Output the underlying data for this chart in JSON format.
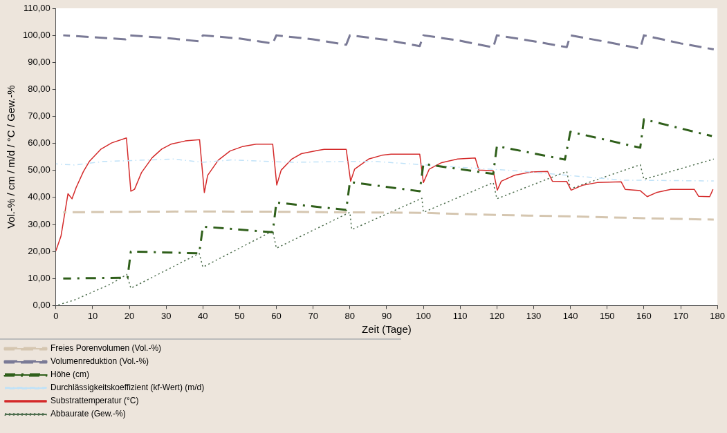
{
  "chart_data": {
    "type": "line",
    "xlabel": "Zeit (Tage)",
    "ylabel": "Vol.-% / cm / m/d / °C / Gew.-%",
    "xlim": [
      0,
      180
    ],
    "xticks": [
      0,
      10,
      20,
      30,
      40,
      50,
      60,
      70,
      80,
      90,
      100,
      110,
      120,
      130,
      140,
      150,
      160,
      170,
      180
    ],
    "ylim": [
      0,
      110
    ],
    "yticks": [
      {
        "value": 0,
        "label": "0,00"
      },
      {
        "value": 10,
        "label": "10,00"
      },
      {
        "value": 20,
        "label": "20,00"
      },
      {
        "value": 30,
        "label": "30,00"
      },
      {
        "value": 40,
        "label": "40,00"
      },
      {
        "value": 50,
        "label": "50,00"
      },
      {
        "value": 60,
        "label": "60,00"
      },
      {
        "value": 70,
        "label": "70,00"
      },
      {
        "value": 80,
        "label": "80,00"
      },
      {
        "value": 90,
        "label": "90,00"
      },
      {
        "value": 100,
        "label": "100,00"
      },
      {
        "value": 110,
        "label": "110,00"
      }
    ],
    "grid": false,
    "legend": "bottom left",
    "marker": "none",
    "series": [
      {
        "name": "Freies Porenvolumen (Vol.-%)",
        "color": "#d5c6b0",
        "line_style": "dashed",
        "x": [
          2,
          20,
          40,
          60,
          80,
          100,
          120,
          140,
          160,
          179
        ],
        "values": [
          34.5,
          34.7,
          34.8,
          34.7,
          34.5,
          34.3,
          33.5,
          33,
          32.3,
          31.8
        ]
      },
      {
        "name": "Volumenreduktion (Vol.-%)",
        "color": "#7a7a96",
        "line_style": "dashed",
        "x": [
          2,
          10,
          19,
          20,
          30,
          39,
          40,
          50,
          59,
          60,
          70,
          79,
          80,
          90,
          99,
          100,
          110,
          119,
          120,
          130,
          139,
          140,
          150,
          159,
          160,
          170,
          179
        ],
        "values": [
          100,
          99.3,
          98.5,
          100,
          99,
          97.8,
          100,
          98.8,
          97,
          100,
          98.5,
          96.5,
          100,
          98.3,
          96,
          100,
          98,
          95.5,
          100,
          97.8,
          95.6,
          100,
          97.5,
          95.1,
          100,
          97,
          94.8
        ]
      },
      {
        "name": "Höhe (cm)",
        "color": "#2f5f1a",
        "line_style": "dashdot",
        "x": [
          2,
          19.5,
          20.4,
          39,
          40,
          59,
          60,
          79,
          80,
          99,
          100,
          119,
          120,
          138.5,
          140,
          159,
          160,
          178.5
        ],
        "values": [
          10,
          10.3,
          20,
          19.3,
          29.2,
          27.1,
          38.1,
          35.4,
          45.7,
          42.3,
          52.4,
          48.7,
          59,
          54,
          64.3,
          58.4,
          68.9,
          62.7
        ]
      },
      {
        "name": "Durchlässigkeitskoeffizient (kf-Wert) (m/d)",
        "color": "#c0e2f8",
        "line_style": "dashdot",
        "x": [
          0,
          5,
          13,
          32,
          40,
          48,
          64,
          80,
          87,
          106,
          126,
          139,
          154,
          179
        ],
        "values": [
          52.4,
          52,
          53.3,
          54.2,
          53,
          53.9,
          53,
          53.3,
          53.3,
          51.5,
          49.8,
          48.2,
          46.4,
          46.1
        ]
      },
      {
        "name": "Substrattemperatur (°C)",
        "color": "#d42a2a",
        "line_style": "solid",
        "x": [
          0,
          1.4,
          3.3,
          4.4,
          5.5,
          7.5,
          9.1,
          12.3,
          15.2,
          19.2,
          20.4,
          21.4,
          23.3,
          26.2,
          28.8,
          31.3,
          35.2,
          39.1,
          40.4,
          41.3,
          44.2,
          47.4,
          50.7,
          54.5,
          59,
          60.1,
          61.3,
          64.2,
          66.8,
          71.3,
          73,
          79,
          80.2,
          81.3,
          85.1,
          88.7,
          91.2,
          99,
          100,
          101.6,
          104.8,
          109.3,
          114.1,
          115.1,
          119,
          120.1,
          121.2,
          124.8,
          129.3,
          133.8,
          135.1,
          139,
          140.2,
          143.5,
          147.3,
          153.8,
          154.9,
          159,
          160.9,
          163.4,
          167.3,
          173.7,
          174.9,
          177.9,
          178.8
        ],
        "values": [
          20.2,
          25.7,
          41.4,
          39.5,
          43.6,
          49.6,
          53.3,
          57.9,
          60.2,
          62,
          42.3,
          43,
          49.2,
          54.7,
          57.9,
          59.7,
          60.9,
          61.4,
          41.8,
          48.2,
          53.8,
          57.2,
          58.8,
          59.7,
          59.7,
          44.6,
          50.1,
          54.2,
          56.2,
          57.4,
          57.8,
          57.8,
          46,
          50.5,
          54.2,
          55.6,
          56,
          56,
          45.5,
          50.5,
          52.8,
          54.2,
          54.6,
          50.1,
          49.9,
          42.7,
          46,
          48.2,
          49.4,
          49.6,
          46,
          45.9,
          42.7,
          44.6,
          45.5,
          45.8,
          43,
          42.5,
          40.3,
          41.8,
          43,
          43,
          40.4,
          40.3,
          43
        ]
      },
      {
        "name": "Abbaurate (Gew.-%)",
        "color": "#4e6e4e",
        "line_style": "dotted",
        "x": [
          0,
          5,
          10,
          15,
          19.3,
          20.4,
          39,
          40,
          59,
          60,
          80,
          80.5,
          99.6,
          100,
          119,
          120,
          139,
          140,
          159,
          160,
          179
        ],
        "values": [
          0,
          2,
          5,
          8,
          11.5,
          6.4,
          19.3,
          14.2,
          27.6,
          21.2,
          34.5,
          28.1,
          39.7,
          34.5,
          45.5,
          39.5,
          49.6,
          43.2,
          52.1,
          46.7,
          54.2
        ]
      }
    ]
  }
}
